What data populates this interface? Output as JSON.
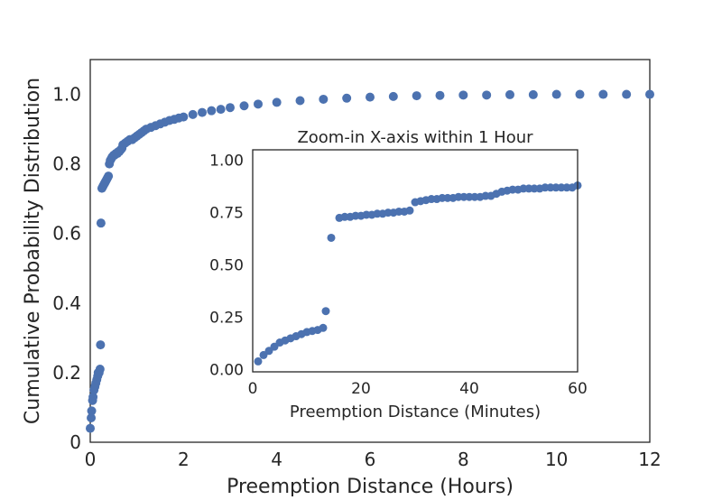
{
  "colors": {
    "marker": "#4c72b0",
    "axis": "#262626",
    "background": "#ffffff"
  },
  "chart_data": [
    {
      "type": "scatter",
      "title": "",
      "xlabel": "Preemption Distance (Hours)",
      "ylabel": "Cumulative Probability Distribution",
      "xlim": [
        0,
        12
      ],
      "ylim": [
        0,
        1.1
      ],
      "xticks": [
        0,
        2,
        4,
        6,
        8,
        10,
        12
      ],
      "xtick_labels": [
        "0",
        "2",
        "4",
        "6",
        "8",
        "10",
        "12"
      ],
      "yticks": [
        0,
        0.2,
        0.4,
        0.6,
        0.8,
        1.0
      ],
      "ytick_labels": [
        "0",
        "0.2",
        "0.4",
        "0.6",
        "0.8",
        "1.0"
      ],
      "grid": false,
      "legend": "none",
      "series": [
        {
          "x": [
            0.0,
            0.02,
            0.03,
            0.05,
            0.06,
            0.08,
            0.1,
            0.12,
            0.14,
            0.16,
            0.17,
            0.19,
            0.21,
            0.22,
            0.23,
            0.25,
            0.27,
            0.29,
            0.31,
            0.33,
            0.35,
            0.37,
            0.39,
            0.41,
            0.43,
            0.45,
            0.47,
            0.5,
            0.52,
            0.55,
            0.58,
            0.6,
            0.62,
            0.65,
            0.68,
            0.7,
            0.75,
            0.8,
            0.85,
            0.9,
            0.95,
            1.0,
            1.05,
            1.1,
            1.15,
            1.2,
            1.3,
            1.4,
            1.5,
            1.6,
            1.7,
            1.8,
            1.9,
            2.0,
            2.2,
            2.4,
            2.6,
            2.8,
            3.0,
            3.3,
            3.6,
            4.0,
            4.5,
            5.0,
            5.5,
            6.0,
            6.5,
            7.0,
            7.5,
            8.0,
            8.5,
            9.0,
            9.5,
            10.0,
            10.5,
            11.0,
            11.5,
            12.0
          ],
          "y": [
            0.04,
            0.07,
            0.09,
            0.12,
            0.13,
            0.15,
            0.16,
            0.17,
            0.18,
            0.19,
            0.2,
            0.2,
            0.21,
            0.28,
            0.63,
            0.73,
            0.735,
            0.74,
            0.745,
            0.75,
            0.755,
            0.76,
            0.765,
            0.8,
            0.81,
            0.815,
            0.82,
            0.825,
            0.825,
            0.83,
            0.83,
            0.835,
            0.835,
            0.84,
            0.845,
            0.855,
            0.86,
            0.865,
            0.87,
            0.87,
            0.875,
            0.88,
            0.885,
            0.89,
            0.895,
            0.9,
            0.905,
            0.91,
            0.915,
            0.92,
            0.925,
            0.928,
            0.932,
            0.935,
            0.942,
            0.948,
            0.953,
            0.957,
            0.962,
            0.967,
            0.972,
            0.977,
            0.982,
            0.986,
            0.989,
            0.992,
            0.994,
            0.996,
            0.997,
            0.998,
            0.998,
            0.999,
            0.999,
            1.0,
            1.0,
            1.0,
            1.0,
            1.0
          ]
        }
      ]
    },
    {
      "type": "scatter",
      "title": "Zoom-in X-axis within 1 Hour",
      "xlabel": "Preemption Distance (Minutes)",
      "ylabel": "",
      "xlim": [
        0,
        60
      ],
      "ylim": [
        -0.01,
        1.05
      ],
      "xticks": [
        0,
        20,
        40,
        60
      ],
      "xtick_labels": [
        "0",
        "20",
        "40",
        "60"
      ],
      "yticks": [
        0,
        0.25,
        0.5,
        0.75,
        1.0
      ],
      "ytick_labels": [
        "0.00",
        "0.25",
        "0.50",
        "0.75",
        "1.00"
      ],
      "grid": false,
      "legend": "none",
      "series": [
        {
          "x": [
            1,
            2,
            3,
            4,
            5,
            6,
            7,
            8,
            9,
            10,
            11,
            12,
            13,
            13.5,
            14.5,
            16,
            17,
            18,
            19,
            20,
            21,
            22,
            23,
            24,
            25,
            26,
            27,
            28,
            29,
            30,
            31,
            32,
            33,
            34,
            35,
            36,
            37,
            38,
            39,
            40,
            41,
            42,
            43,
            44,
            45,
            46,
            47,
            48,
            49,
            50,
            51,
            52,
            53,
            54,
            55,
            56,
            57,
            58,
            59,
            60
          ],
          "y": [
            0.04,
            0.07,
            0.09,
            0.11,
            0.13,
            0.14,
            0.15,
            0.16,
            0.17,
            0.18,
            0.185,
            0.19,
            0.2,
            0.28,
            0.63,
            0.725,
            0.73,
            0.73,
            0.735,
            0.735,
            0.74,
            0.74,
            0.745,
            0.745,
            0.75,
            0.75,
            0.755,
            0.755,
            0.76,
            0.8,
            0.805,
            0.81,
            0.815,
            0.815,
            0.82,
            0.82,
            0.82,
            0.825,
            0.825,
            0.825,
            0.825,
            0.825,
            0.83,
            0.83,
            0.84,
            0.85,
            0.855,
            0.86,
            0.86,
            0.865,
            0.865,
            0.865,
            0.865,
            0.87,
            0.87,
            0.87,
            0.87,
            0.87,
            0.87,
            0.88
          ]
        }
      ]
    }
  ]
}
